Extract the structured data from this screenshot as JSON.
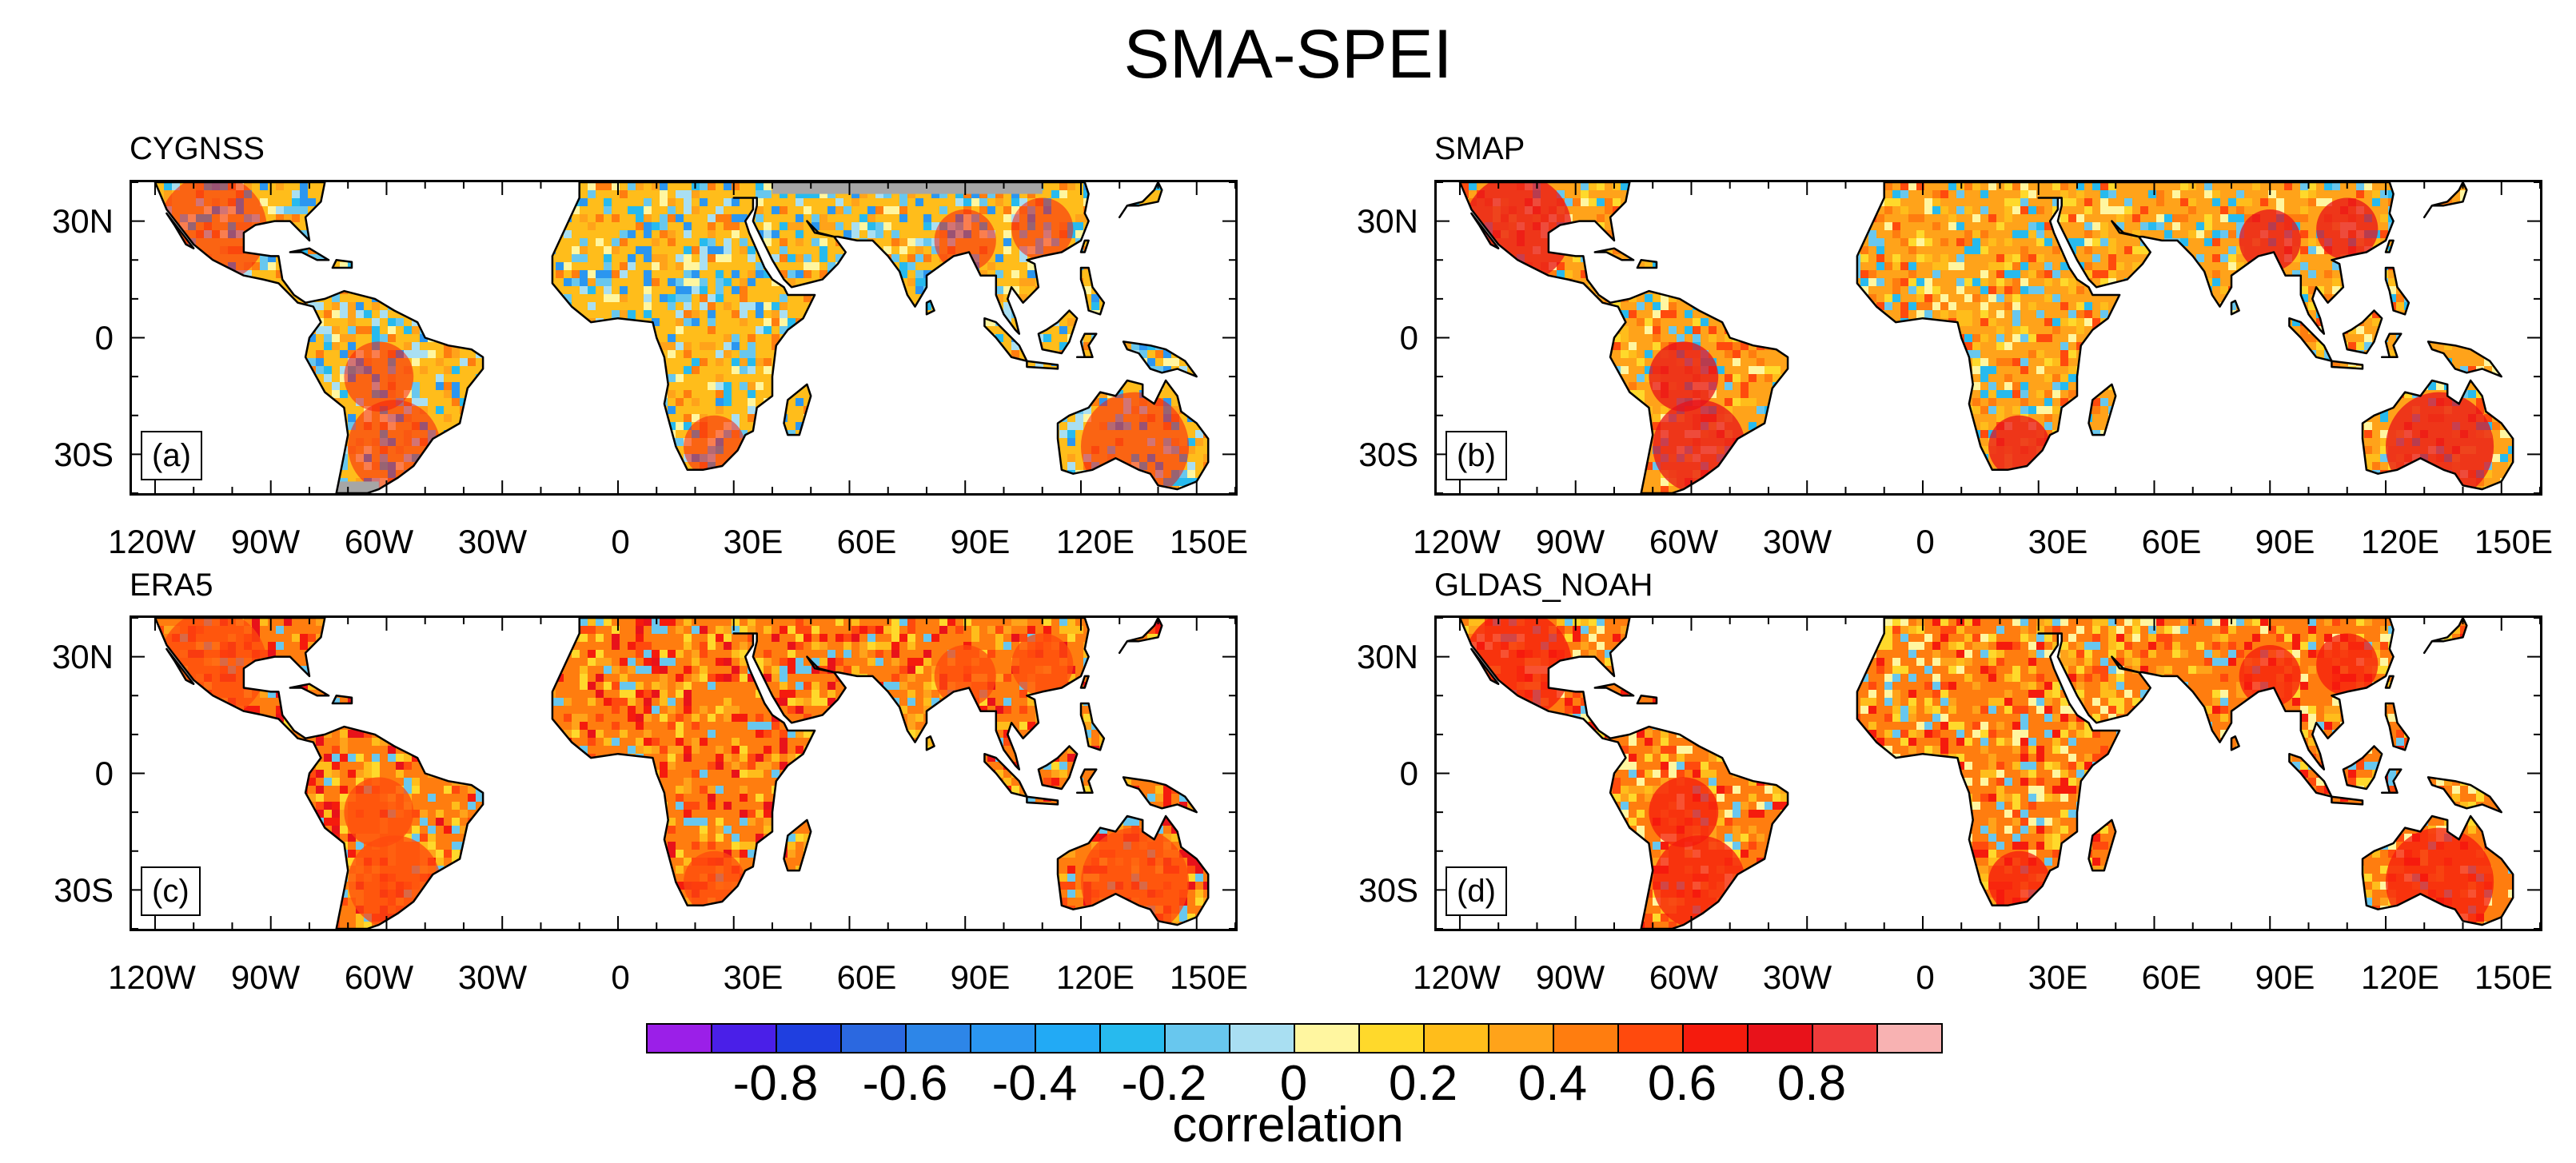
{
  "title": "SMA-SPEI",
  "panels": [
    {
      "name": "CYGNSS",
      "letter": "(a)",
      "palette": "cygnss"
    },
    {
      "name": "SMAP",
      "letter": "(b)",
      "palette": "smap"
    },
    {
      "name": "ERA5",
      "letter": "(c)",
      "palette": "era5"
    },
    {
      "name": "GLDAS_NOAH",
      "letter": "(d)",
      "palette": "gldas"
    }
  ],
  "lat_labels": [
    "30N",
    "0",
    "30S"
  ],
  "lon_labels": [
    "120W",
    "90W",
    "60W",
    "30W",
    "0",
    "30E",
    "60E",
    "90E",
    "120E",
    "150E"
  ],
  "colorbar": {
    "label": "correlation",
    "colors": [
      "#9b1fe8",
      "#4a1fe8",
      "#1f3fe0",
      "#2b68e0",
      "#2d86e8",
      "#2b96f0",
      "#22aaf5",
      "#27baee",
      "#68c7ee",
      "#a9dff2",
      "#fff6a0",
      "#ffd92b",
      "#ffbd1b",
      "#ffa31a",
      "#ff7d0f",
      "#ff4a0d",
      "#f51b0d",
      "#e8121a",
      "#ef3b3b",
      "#f8b2b2"
    ],
    "ticks": [
      "-0.8",
      "-0.6",
      "-0.4",
      "-0.2",
      "0",
      "0.2",
      "0.4",
      "0.6",
      "0.8"
    ]
  },
  "colors": {
    "missing": "#a6a6a6",
    "coast": "#000000"
  }
}
